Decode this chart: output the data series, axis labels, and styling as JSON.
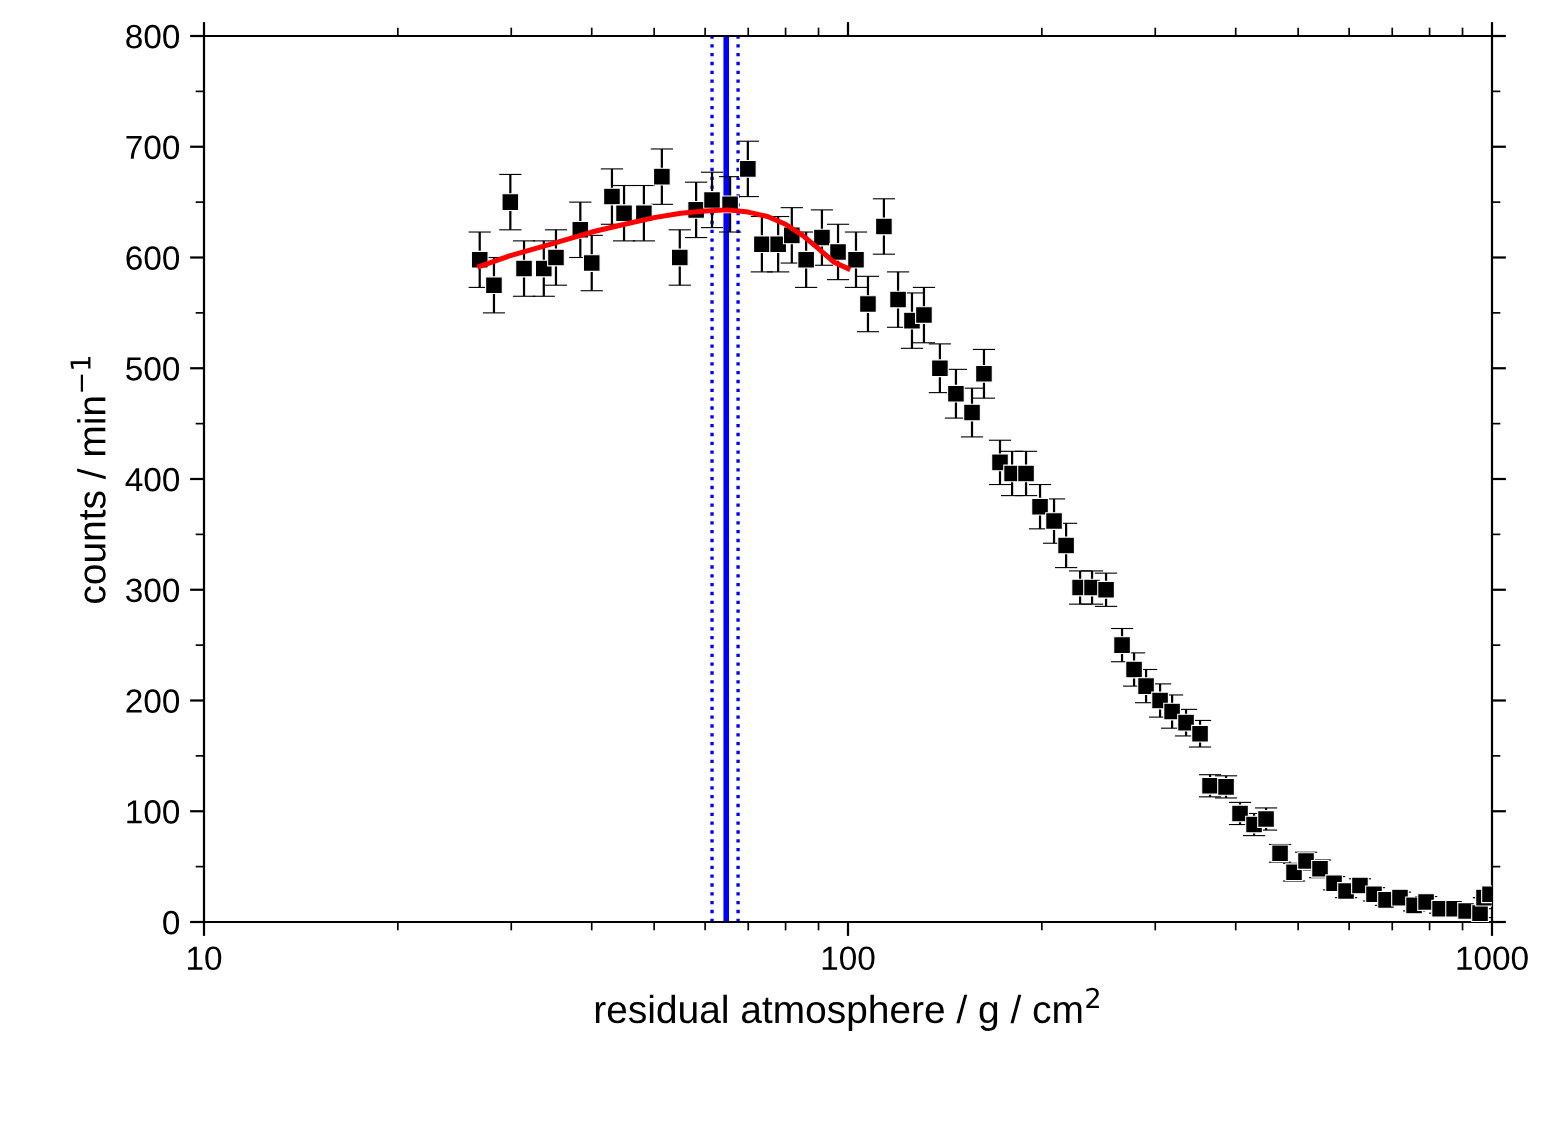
{
  "chart_data": {
    "type": "scatter",
    "xlabel": "residual atmosphere / g / cm$^{2}$",
    "ylabel": "counts / min$^{−1}$",
    "log": "x",
    "xlim": [
      10,
      1000
    ],
    "xticks": [
      10,
      100,
      1000
    ],
    "ylim": [
      0,
      800
    ],
    "yticks": [
      0,
      100,
      200,
      300,
      400,
      500,
      600,
      700,
      800
    ],
    "grid": false,
    "legend": false,
    "marker": "square",
    "series": [
      {
        "color": "#000000",
        "x": [
          26.8,
          28.2,
          29.9,
          31.4,
          33.7,
          35.2,
          38.4,
          40.0,
          43.0,
          44.9,
          48.2,
          51.4,
          54.8,
          58.1,
          61.5,
          65.6,
          69.9,
          73.5,
          77.9,
          81.8,
          86.1,
          91.1,
          96.5,
          102.9,
          107.4,
          113.7,
          119.6,
          125.7,
          131.2,
          138.9,
          147.1,
          155.8,
          162.6,
          172.2,
          179.8,
          189.0,
          198.7,
          208.9,
          218.1,
          229.3,
          239.3,
          251.6,
          266.4,
          278.1,
          290.3,
          305.2,
          318.6,
          334.9,
          352.1,
          364.9,
          386.4,
          406.2,
          427.1,
          445.8,
          468.7,
          492.7,
          514.3,
          540.7,
          568.5,
          593.4,
          623.7,
          655.8,
          684.6,
          719.7,
          756.8,
          790.0,
          830.6,
          873.2,
          911.5,
          958.1,
          971.9,
          992.9
        ],
        "values": [
          598,
          575,
          650,
          590,
          590,
          600,
          625,
          595,
          655,
          640,
          640,
          673,
          600,
          643,
          652,
          648,
          680,
          612,
          612,
          620,
          598,
          618,
          605,
          598,
          558,
          628,
          562,
          543,
          548,
          500,
          477,
          460,
          495,
          415,
          405,
          405,
          375,
          362,
          340,
          302,
          302,
          300,
          250,
          228,
          213,
          200,
          190,
          180,
          170,
          123,
          122,
          98,
          88,
          93,
          62,
          45,
          55,
          48,
          35,
          28,
          33,
          25,
          20,
          22,
          15,
          18,
          12,
          12,
          10,
          8,
          22,
          25
        ],
        "errors": [
          25,
          25,
          25,
          25,
          25,
          25,
          25,
          25,
          25,
          25,
          25,
          25,
          25,
          25,
          25,
          25,
          25,
          25,
          25,
          25,
          25,
          25,
          25,
          25,
          25,
          25,
          25,
          25,
          25,
          22,
          22,
          22,
          22,
          20,
          20,
          20,
          20,
          20,
          20,
          15,
          15,
          15,
          15,
          15,
          15,
          15,
          15,
          12,
          12,
          10,
          10,
          10,
          10,
          10,
          8,
          8,
          8,
          8,
          6,
          6,
          6,
          6,
          5,
          5,
          5,
          5,
          4,
          4,
          4,
          4,
          null,
          null
        ]
      },
      {
        "type": "line",
        "color": "#ff0000",
        "marker": "none",
        "line_style": "solid",
        "x": [
          26.8,
          30,
          35,
          40,
          45,
          50,
          55,
          60,
          65,
          70,
          75,
          80,
          85,
          90,
          95,
          100
        ],
        "values": [
          592,
          602,
          613,
          623,
          630,
          636,
          640,
          642,
          643,
          641,
          637,
          630,
          620,
          608,
          596,
          590
        ]
      }
    ],
    "ref_lines": [
      {
        "axis": "x",
        "value": 61.5,
        "color": "#0000ff",
        "line_style": "dotted"
      },
      {
        "axis": "x",
        "value": 64.7,
        "color": "#0000ff",
        "line_style": "solid"
      },
      {
        "axis": "x",
        "value": 67.5,
        "color": "#0000ff",
        "line_style": "dotted"
      }
    ]
  }
}
